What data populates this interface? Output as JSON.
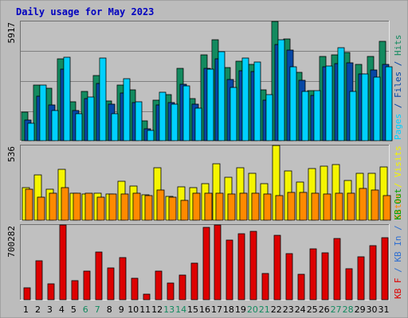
{
  "title": "Daily usage for May 2023",
  "colors": {
    "background": "#ffffff",
    "frame": "#bcbcbc",
    "plot_bg": "#c0c0c0",
    "grid": "#808080",
    "title": "#0000c0",
    "hits": "#138a5f",
    "files": "#0747a5",
    "pages": "#00d0ff",
    "visits": "#f5f500",
    "sites": "#ff8a00",
    "kb_f": "#dd0000",
    "kb_in": "#2f6fd0",
    "kb_out": "#00a000",
    "weekend_label": "#138a5f",
    "weekday_label": "#000000"
  },
  "chart_data": [
    {
      "type": "bar",
      "panel": "hits-files-pages",
      "ymax_label": "5917",
      "ylim": [
        0,
        5917
      ],
      "legend": [
        {
          "text": "Pages",
          "color": "pages"
        },
        {
          "text": " / ",
          "color": "files"
        },
        {
          "text": "Files",
          "color": "files"
        },
        {
          "text": " / ",
          "color": "files"
        },
        {
          "text": "Hits",
          "color": "hits"
        }
      ],
      "series": [
        {
          "name": "Hits",
          "color": "hits",
          "values": [
            1435,
            2750,
            2610,
            4050,
            1935,
            2460,
            3240,
            1980,
            2750,
            2520,
            990,
            2020,
            2270,
            3590,
            2100,
            4275,
            5000,
            3640,
            3940,
            3800,
            2540,
            5917,
            5055,
            3410,
            2500,
            4200,
            4255,
            4360,
            3800,
            4200,
            4940
          ]
        },
        {
          "name": "Files",
          "color": "files",
          "values": [
            1040,
            2190,
            1760,
            3565,
            1480,
            2110,
            2830,
            1820,
            2350,
            1880,
            600,
            1780,
            1880,
            2810,
            1820,
            3580,
            4050,
            3055,
            3470,
            3440,
            2020,
            4770,
            4510,
            3005,
            2240,
            3670,
            3820,
            3850,
            3300,
            3500,
            3800
          ]
        },
        {
          "name": "Pages",
          "color": "pages",
          "values": [
            880,
            2780,
            1480,
            4150,
            1330,
            2170,
            4105,
            1340,
            3070,
            1950,
            500,
            2400,
            1810,
            2720,
            1630,
            3560,
            4420,
            2630,
            4100,
            3900,
            2300,
            5020,
            3680,
            2460,
            2470,
            3720,
            4600,
            2430,
            3330,
            3150,
            3670
          ]
        }
      ]
    },
    {
      "type": "bar",
      "panel": "visits-sites",
      "ymax_label": "536",
      "ylim": [
        0,
        536
      ],
      "legend": [
        {
          "text": "Sites",
          "color": "sites"
        },
        {
          "text": " / ",
          "color": "visits"
        },
        {
          "text": "Visits",
          "color": "visits"
        }
      ],
      "series": [
        {
          "name": "Visits",
          "color": "visits",
          "values": [
            235,
            325,
            220,
            363,
            195,
            190,
            195,
            190,
            280,
            245,
            180,
            375,
            170,
            240,
            235,
            260,
            407,
            310,
            375,
            335,
            265,
            536,
            355,
            275,
            370,
            385,
            397,
            285,
            335,
            335,
            380
          ]
        },
        {
          "name": "Sites",
          "color": "sites",
          "values": [
            225,
            165,
            195,
            235,
            195,
            195,
            165,
            190,
            190,
            195,
            175,
            215,
            165,
            145,
            195,
            195,
            195,
            190,
            195,
            195,
            190,
            175,
            200,
            200,
            195,
            190,
            195,
            195,
            230,
            215,
            175
          ]
        }
      ]
    },
    {
      "type": "bar",
      "panel": "kbytes",
      "ymax_label": "700282",
      "ylim": [
        0,
        700282
      ],
      "legend": [
        {
          "text": "KB F",
          "color": "kb_f"
        },
        {
          "text": " / ",
          "color": "kb_in"
        },
        {
          "text": "KB In",
          "color": "kb_in"
        },
        {
          "text": " / ",
          "color": "kb_in"
        },
        {
          "text": "KB Out",
          "color": "kb_out"
        }
      ],
      "series": [
        {
          "name": "KB F",
          "color": "kb_f",
          "values": [
            110000,
            362000,
            150000,
            700000,
            180000,
            266000,
            450000,
            295000,
            392000,
            203000,
            50000,
            265000,
            155000,
            232000,
            339000,
            679000,
            700282,
            558000,
            615000,
            644000,
            247000,
            604000,
            429000,
            238000,
            476000,
            438000,
            570000,
            290000,
            400000,
            504000,
            582000
          ]
        }
      ]
    }
  ],
  "x_labels": [
    {
      "text": "1",
      "weekend": false
    },
    {
      "text": "2",
      "weekend": false
    },
    {
      "text": "3",
      "weekend": false
    },
    {
      "text": "4",
      "weekend": false
    },
    {
      "text": "5",
      "weekend": false
    },
    {
      "text": "6",
      "weekend": true
    },
    {
      "text": "7",
      "weekend": true
    },
    {
      "text": "8",
      "weekend": false
    },
    {
      "text": "9",
      "weekend": false
    },
    {
      "text": "10",
      "weekend": false
    },
    {
      "text": "11",
      "weekend": false
    },
    {
      "text": "12",
      "weekend": false
    },
    {
      "text": "13",
      "weekend": true
    },
    {
      "text": "14",
      "weekend": true
    },
    {
      "text": "15",
      "weekend": false
    },
    {
      "text": "16",
      "weekend": false
    },
    {
      "text": "17",
      "weekend": false
    },
    {
      "text": "18",
      "weekend": false
    },
    {
      "text": "19",
      "weekend": false
    },
    {
      "text": "20",
      "weekend": true
    },
    {
      "text": "21",
      "weekend": true
    },
    {
      "text": "22",
      "weekend": false
    },
    {
      "text": "23",
      "weekend": false
    },
    {
      "text": "24",
      "weekend": false
    },
    {
      "text": "25",
      "weekend": false
    },
    {
      "text": "26",
      "weekend": false
    },
    {
      "text": "27",
      "weekend": true
    },
    {
      "text": "28",
      "weekend": true
    },
    {
      "text": "29",
      "weekend": false
    },
    {
      "text": "30",
      "weekend": false
    },
    {
      "text": "31",
      "weekend": false
    }
  ]
}
